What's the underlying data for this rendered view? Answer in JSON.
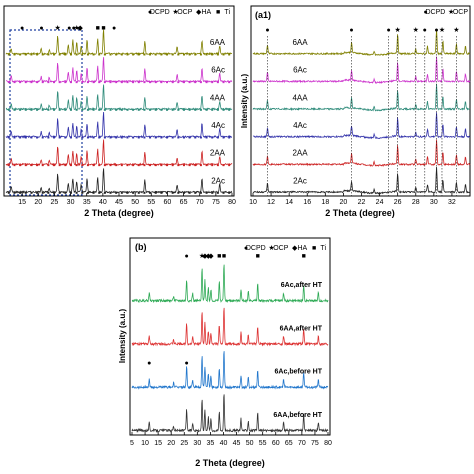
{
  "chart_data": [
    {
      "type": "line",
      "panel_label": "",
      "xlabel": "2 Theta (degree)",
      "ylabel": "",
      "xlim": [
        10,
        80
      ],
      "xticks": [
        15,
        20,
        25,
        30,
        35,
        40,
        45,
        50,
        55,
        60,
        65,
        70,
        75,
        80
      ],
      "legend": {
        "position": "top-right",
        "entries": [
          {
            "symbol": "●",
            "label": "DCPD"
          },
          {
            "symbol": "★",
            "label": "OCP"
          },
          {
            "symbol": "◆",
            "label": "HA"
          },
          {
            "symbol": "■",
            "label": "Ti"
          }
        ]
      },
      "series": [
        {
          "name": "6AA",
          "color": "#808000"
        },
        {
          "name": "6Ac",
          "color": "#cc33cc"
        },
        {
          "name": "4AA",
          "color": "#2e8b7a"
        },
        {
          "name": "4Ac",
          "color": "#3333aa"
        },
        {
          "name": "2AA",
          "color": "#cc2222"
        },
        {
          "name": "2Ac",
          "color": "#222222"
        }
      ],
      "peaks": [
        {
          "x": 11.6,
          "h": 0.22
        },
        {
          "x": 20.9,
          "h": 0.2
        },
        {
          "x": 23.4,
          "h": 0.16
        },
        {
          "x": 26.0,
          "h": 0.75
        },
        {
          "x": 29.3,
          "h": 0.38
        },
        {
          "x": 30.7,
          "h": 0.55
        },
        {
          "x": 31.9,
          "h": 0.45
        },
        {
          "x": 33.3,
          "h": 0.3
        },
        {
          "x": 35.1,
          "h": 0.55
        },
        {
          "x": 38.4,
          "h": 0.6
        },
        {
          "x": 40.2,
          "h": 1.0
        },
        {
          "x": 53.0,
          "h": 0.5
        },
        {
          "x": 63.0,
          "h": 0.28
        },
        {
          "x": 70.7,
          "h": 0.55
        },
        {
          "x": 76.2,
          "h": 0.32
        }
      ],
      "markers": [
        {
          "x": 15.0,
          "symbol": "●"
        },
        {
          "x": 21.0,
          "symbol": "●"
        },
        {
          "x": 26.0,
          "symbol": "★"
        },
        {
          "x": 29.6,
          "symbol": "●"
        },
        {
          "x": 31.0,
          "symbol": "●"
        },
        {
          "x": 31.9,
          "symbol": "★"
        },
        {
          "x": 33.0,
          "symbol": "◆"
        },
        {
          "x": 38.4,
          "symbol": "■"
        },
        {
          "x": 40.2,
          "symbol": "■"
        },
        {
          "x": 43.5,
          "symbol": "●"
        }
      ]
    },
    {
      "type": "line",
      "panel_label": "(a1)",
      "xlabel": "2 Theta (degree)",
      "ylabel": "Intensity (a.u.)",
      "xlim": [
        10,
        34
      ],
      "xticks": [
        10,
        12,
        14,
        16,
        18,
        20,
        22,
        24,
        26,
        28,
        30,
        32
      ],
      "legend": {
        "position": "top-right",
        "entries": [
          {
            "symbol": "●",
            "label": "DCPD"
          },
          {
            "symbol": "★",
            "label": "OCP"
          }
        ]
      },
      "series": [
        {
          "name": "6AA",
          "color": "#808000"
        },
        {
          "name": "6Ac",
          "color": "#cc33cc"
        },
        {
          "name": "4AA",
          "color": "#2e8b7a"
        },
        {
          "name": "4Ac",
          "color": "#3333aa"
        },
        {
          "name": "2AA",
          "color": "#cc2222"
        },
        {
          "name": "2Ac",
          "color": "#222222"
        }
      ],
      "peaks": [
        {
          "x": 11.6,
          "h": 0.35
        },
        {
          "x": 20.9,
          "h": 0.4
        },
        {
          "x": 23.4,
          "h": 0.15
        },
        {
          "x": 26.0,
          "h": 0.75
        },
        {
          "x": 28.0,
          "h": 0.2
        },
        {
          "x": 29.3,
          "h": 0.3
        },
        {
          "x": 30.3,
          "h": 1.0
        },
        {
          "x": 31.0,
          "h": 0.5
        },
        {
          "x": 32.5,
          "h": 0.4
        },
        {
          "x": 33.5,
          "h": 0.3
        }
      ],
      "markers": [
        {
          "x": 11.6,
          "symbol": "●"
        },
        {
          "x": 20.9,
          "symbol": "●"
        },
        {
          "x": 25.0,
          "symbol": "●"
        },
        {
          "x": 26.0,
          "symbol": "★"
        },
        {
          "x": 28.0,
          "symbol": "★"
        },
        {
          "x": 29.0,
          "symbol": "●"
        },
        {
          "x": 30.3,
          "symbol": "●"
        },
        {
          "x": 30.9,
          "symbol": "★"
        },
        {
          "x": 32.5,
          "symbol": "★"
        }
      ]
    },
    {
      "type": "line",
      "panel_label": "(b)",
      "xlabel": "2 Theta (degree)",
      "ylabel": "Intensity (a.u.)",
      "xlim": [
        5,
        80
      ],
      "xticks": [
        5,
        10,
        15,
        20,
        25,
        30,
        35,
        40,
        45,
        50,
        55,
        60,
        65,
        70,
        75,
        80
      ],
      "legend": {
        "position": "top-right",
        "entries": [
          {
            "symbol": "●",
            "label": "DCPD"
          },
          {
            "symbol": "★",
            "label": "OCP"
          },
          {
            "symbol": "◆",
            "label": "HA"
          },
          {
            "symbol": "■",
            "label": "Ti"
          }
        ]
      },
      "series": [
        {
          "name": "6Ac,after HT",
          "color": "#2eaa55"
        },
        {
          "name": "6AA,after HT",
          "color": "#dd3333"
        },
        {
          "name": "6Ac,before HT",
          "color": "#2277cc"
        },
        {
          "name": "6AA,before HT",
          "color": "#333333"
        }
      ],
      "peaks": [
        {
          "x": 11.6,
          "h": 0.2
        },
        {
          "x": 20.9,
          "h": 0.12
        },
        {
          "x": 25.9,
          "h": 0.55
        },
        {
          "x": 28.2,
          "h": 0.2
        },
        {
          "x": 31.8,
          "h": 0.85
        },
        {
          "x": 32.9,
          "h": 0.55
        },
        {
          "x": 34.2,
          "h": 0.35
        },
        {
          "x": 35.2,
          "h": 0.3
        },
        {
          "x": 38.4,
          "h": 0.5
        },
        {
          "x": 40.2,
          "h": 1.0
        },
        {
          "x": 46.7,
          "h": 0.3
        },
        {
          "x": 49.5,
          "h": 0.25
        },
        {
          "x": 53.1,
          "h": 0.45
        },
        {
          "x": 63.0,
          "h": 0.2
        },
        {
          "x": 70.7,
          "h": 0.4
        },
        {
          "x": 76.3,
          "h": 0.2
        }
      ],
      "markers": [
        {
          "x": 25.9,
          "symbol": "●"
        },
        {
          "x": 31.8,
          "symbol": "★"
        },
        {
          "x": 32.9,
          "symbol": "◆"
        },
        {
          "x": 34.2,
          "symbol": "◆"
        },
        {
          "x": 35.2,
          "symbol": "◆"
        },
        {
          "x": 38.4,
          "symbol": "■"
        },
        {
          "x": 40.2,
          "symbol": "■"
        },
        {
          "x": 53.1,
          "symbol": "■"
        },
        {
          "x": 70.7,
          "symbol": "■"
        }
      ],
      "series_markers": [
        {
          "series_index": 2,
          "x": 11.6,
          "symbol": "●"
        },
        {
          "series_index": 2,
          "x": 25.9,
          "symbol": "●"
        }
      ]
    }
  ]
}
